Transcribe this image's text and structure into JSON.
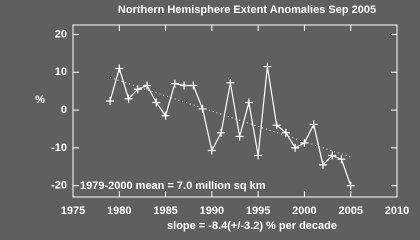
{
  "chart_data": {
    "type": "line",
    "title": "Northern Hemisphere Extent Anomalies Sep 2005",
    "ylabel": "%",
    "x": [
      1979,
      1980,
      1981,
      1982,
      1983,
      1984,
      1985,
      1986,
      1987,
      1988,
      1989,
      1990,
      1991,
      1992,
      1993,
      1994,
      1995,
      1996,
      1997,
      1998,
      1999,
      2000,
      2001,
      2002,
      2003,
      2004,
      2005
    ],
    "values": [
      2.4,
      11,
      3,
      5.5,
      6.5,
      2,
      -1.5,
      7,
      6.5,
      6.5,
      0.3,
      -10.7,
      -6,
      7.2,
      -7,
      2,
      -12,
      11.5,
      -4,
      -6,
      -10,
      -8.7,
      -3.8,
      -14.5,
      -12,
      -13,
      -20
    ],
    "color": "#ffffff",
    "trend": {
      "x": [
        1979,
        2005
      ],
      "values": [
        8.6,
        -12.4
      ]
    },
    "annotations": [
      "1979-2000 mean =   7.0 million sq km",
      "slope =  -8.4(+/-3.2) % per decade"
    ],
    "xlim": [
      1975,
      2010
    ],
    "ylim": [
      -23,
      22.5
    ],
    "xticks": [
      1975,
      1980,
      1985,
      1990,
      1995,
      2000,
      2005,
      2010
    ],
    "yticks": [
      -20,
      -10,
      0,
      10,
      20
    ]
  }
}
